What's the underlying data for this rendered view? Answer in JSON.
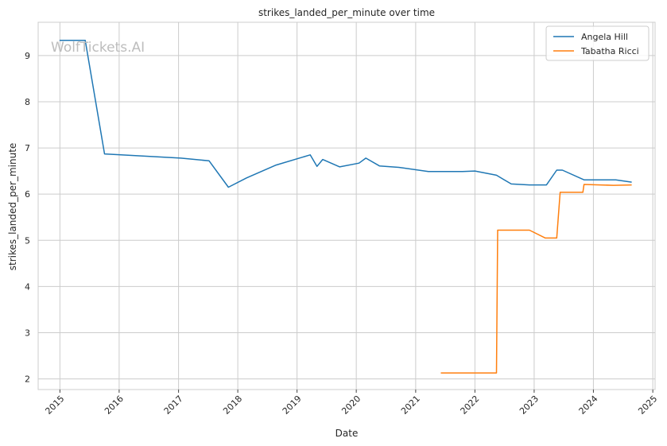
{
  "chart_data": {
    "type": "line",
    "title": "strikes_landed_per_minute over time",
    "xlabel": "Date",
    "ylabel": "strikes_landed_per_minute",
    "watermark": "WolfTickets.AI",
    "xlim": [
      "2014-08-20",
      "2025-01-15"
    ],
    "ylim": [
      1.77,
      9.72
    ],
    "x_ticks": [
      {
        "date": "2015-01-01",
        "label": "2015"
      },
      {
        "date": "2016-01-01",
        "label": "2016"
      },
      {
        "date": "2017-01-01",
        "label": "2017"
      },
      {
        "date": "2018-01-01",
        "label": "2018"
      },
      {
        "date": "2019-01-01",
        "label": "2019"
      },
      {
        "date": "2020-01-01",
        "label": "2020"
      },
      {
        "date": "2021-01-01",
        "label": "2021"
      },
      {
        "date": "2022-01-01",
        "label": "2022"
      },
      {
        "date": "2023-01-01",
        "label": "2023"
      },
      {
        "date": "2024-01-01",
        "label": "2024"
      },
      {
        "date": "2025-01-01",
        "label": "2025"
      }
    ],
    "y_ticks": [
      2,
      3,
      4,
      5,
      6,
      7,
      8,
      9
    ],
    "grid": true,
    "legend_position": "top-right",
    "series": [
      {
        "name": "Angela Hill",
        "color": "#1f77b4",
        "points": [
          {
            "x": "2014-12-30",
            "y": 9.33
          },
          {
            "x": "2015-06-06",
            "y": 9.33
          },
          {
            "x": "2015-10-03",
            "y": 6.87
          },
          {
            "x": "2017-01-15",
            "y": 6.78
          },
          {
            "x": "2017-07-08",
            "y": 6.72
          },
          {
            "x": "2017-11-04",
            "y": 6.15
          },
          {
            "x": "2018-02-24",
            "y": 6.35
          },
          {
            "x": "2018-08-25",
            "y": 6.63
          },
          {
            "x": "2019-03-23",
            "y": 6.85
          },
          {
            "x": "2019-05-04",
            "y": 6.6
          },
          {
            "x": "2019-06-08",
            "y": 6.75
          },
          {
            "x": "2019-09-21",
            "y": 6.59
          },
          {
            "x": "2020-01-18",
            "y": 6.67
          },
          {
            "x": "2020-02-29",
            "y": 6.78
          },
          {
            "x": "2020-05-23",
            "y": 6.61
          },
          {
            "x": "2020-09-19",
            "y": 6.58
          },
          {
            "x": "2021-03-20",
            "y": 6.49
          },
          {
            "x": "2021-10-16",
            "y": 6.49
          },
          {
            "x": "2022-01-01",
            "y": 6.5
          },
          {
            "x": "2022-05-14",
            "y": 6.41
          },
          {
            "x": "2022-08-13",
            "y": 6.22
          },
          {
            "x": "2022-12-03",
            "y": 6.2
          },
          {
            "x": "2023-03-18",
            "y": 6.2
          },
          {
            "x": "2023-05-20",
            "y": 6.52
          },
          {
            "x": "2023-06-24",
            "y": 6.52
          },
          {
            "x": "2023-11-04",
            "y": 6.31
          },
          {
            "x": "2024-05-18",
            "y": 6.31
          },
          {
            "x": "2024-08-24",
            "y": 6.26
          }
        ]
      },
      {
        "name": "Tabatha Ricci",
        "color": "#ff7f0e",
        "points": [
          {
            "x": "2021-06-05",
            "y": 2.13
          },
          {
            "x": "2022-05-14",
            "y": 2.13
          },
          {
            "x": "2022-05-21",
            "y": 5.22
          },
          {
            "x": "2022-12-03",
            "y": 5.22
          },
          {
            "x": "2023-03-11",
            "y": 5.05
          },
          {
            "x": "2023-05-20",
            "y": 5.05
          },
          {
            "x": "2023-06-10",
            "y": 6.04
          },
          {
            "x": "2023-10-28",
            "y": 6.04
          },
          {
            "x": "2023-11-04",
            "y": 6.21
          },
          {
            "x": "2024-05-04",
            "y": 6.19
          },
          {
            "x": "2024-08-24",
            "y": 6.2
          }
        ]
      }
    ]
  }
}
